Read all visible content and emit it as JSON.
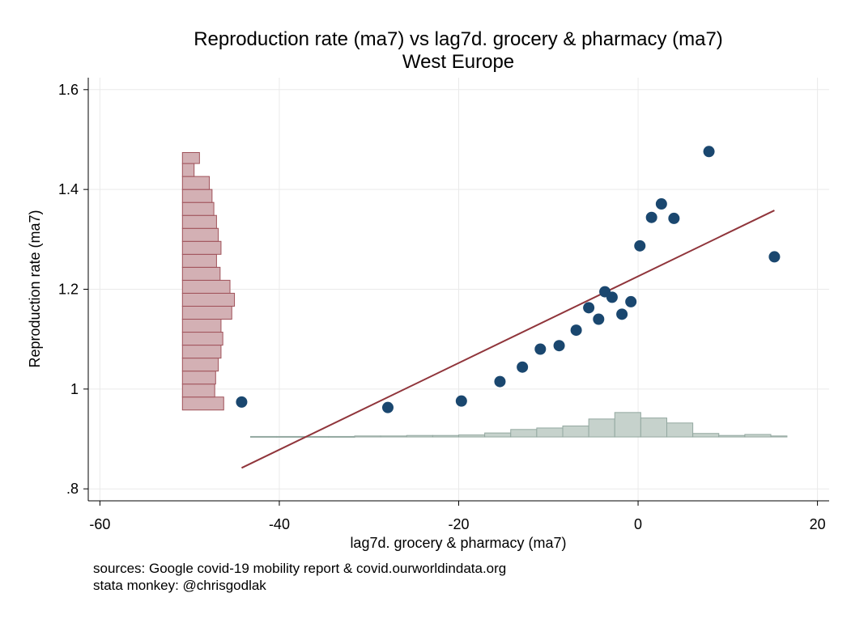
{
  "title_line1": "Reproduction rate (ma7) vs lag7d. grocery & pharmacy (ma7)",
  "title_line2": "West Europe",
  "notes": [
    "sources: Google covid-19 mobility report & covid.ourworldindata.org",
    "stata monkey: @chrisgodlak"
  ],
  "colors": {
    "scatter": "#1a476f",
    "fit_line": "#90353b",
    "y_hist_fill": "#d3b0b4",
    "y_hist_stroke": "#a0525a",
    "x_hist_fill": "#c6d2cc",
    "x_hist_stroke": "#93a8a0",
    "grid": "#eaeaea"
  },
  "chart_data": {
    "type": "scatter",
    "title": "Reproduction rate (ma7) vs lag7d. grocery & pharmacy (ma7)",
    "subtitle": "West Europe",
    "xlabel": "lag7d. grocery & pharmacy (ma7)",
    "ylabel": "Reproduction rate (ma7)",
    "xlim": [
      -61.3,
      21.3
    ],
    "ylim": [
      0.776,
      1.624
    ],
    "xticks": [
      -60,
      -40,
      -20,
      0,
      20
    ],
    "xtick_labels": [
      "-60",
      "-40",
      "-20",
      "0",
      "20"
    ],
    "yticks": [
      0.8,
      1.0,
      1.2,
      1.4,
      1.6
    ],
    "ytick_labels": [
      ".8",
      "1",
      "1.2",
      "1.4",
      "1.6"
    ],
    "grid": true,
    "points": [
      {
        "x": -44.2,
        "y": 0.974
      },
      {
        "x": -27.9,
        "y": 0.963
      },
      {
        "x": -19.7,
        "y": 0.976
      },
      {
        "x": -15.4,
        "y": 1.015
      },
      {
        "x": -12.9,
        "y": 1.044
      },
      {
        "x": -10.9,
        "y": 1.08
      },
      {
        "x": -8.8,
        "y": 1.087
      },
      {
        "x": -6.9,
        "y": 1.118
      },
      {
        "x": -5.5,
        "y": 1.163
      },
      {
        "x": -4.4,
        "y": 1.14
      },
      {
        "x": -3.7,
        "y": 1.195
      },
      {
        "x": -2.9,
        "y": 1.184
      },
      {
        "x": -1.8,
        "y": 1.15
      },
      {
        "x": -0.8,
        "y": 1.175
      },
      {
        "x": 0.2,
        "y": 1.287
      },
      {
        "x": 1.5,
        "y": 1.344
      },
      {
        "x": 2.6,
        "y": 1.371
      },
      {
        "x": 4.0,
        "y": 1.342
      },
      {
        "x": 7.9,
        "y": 1.476
      },
      {
        "x": 15.2,
        "y": 1.265
      }
    ],
    "fit_line": {
      "x": [
        -44.2,
        15.2
      ],
      "y": [
        0.842,
        1.358
      ]
    },
    "y_histogram": {
      "base_x": -50.8,
      "bins": [
        {
          "y0": 0.958,
          "y1": 0.984,
          "x_end": -46.2
        },
        {
          "y0": 0.984,
          "y1": 1.01,
          "x_end": -47.2
        },
        {
          "y0": 1.01,
          "y1": 1.036,
          "x_end": -47.1
        },
        {
          "y0": 1.036,
          "y1": 1.062,
          "x_end": -46.8
        },
        {
          "y0": 1.062,
          "y1": 1.088,
          "x_end": -46.5
        },
        {
          "y0": 1.088,
          "y1": 1.114,
          "x_end": -46.3
        },
        {
          "y0": 1.114,
          "y1": 1.14,
          "x_end": -46.5
        },
        {
          "y0": 1.14,
          "y1": 1.166,
          "x_end": -45.3
        },
        {
          "y0": 1.166,
          "y1": 1.192,
          "x_end": -45.0
        },
        {
          "y0": 1.192,
          "y1": 1.218,
          "x_end": -45.5
        },
        {
          "y0": 1.218,
          "y1": 1.244,
          "x_end": -46.6
        },
        {
          "y0": 1.244,
          "y1": 1.27,
          "x_end": -47.0
        },
        {
          "y0": 1.27,
          "y1": 1.296,
          "x_end": -46.5
        },
        {
          "y0": 1.296,
          "y1": 1.322,
          "x_end": -46.8
        },
        {
          "y0": 1.322,
          "y1": 1.348,
          "x_end": -47.0
        },
        {
          "y0": 1.348,
          "y1": 1.374,
          "x_end": -47.3
        },
        {
          "y0": 1.374,
          "y1": 1.4,
          "x_end": -47.5
        },
        {
          "y0": 1.4,
          "y1": 1.426,
          "x_end": -47.8
        },
        {
          "y0": 1.426,
          "y1": 1.452,
          "x_end": -49.5
        },
        {
          "y0": 1.452,
          "y1": 1.474,
          "x_end": -48.9
        }
      ]
    },
    "x_histogram": {
      "base_y": 0.904,
      "bins": [
        {
          "x0": -43.2,
          "x1": -40.3,
          "y_top": 0.905
        },
        {
          "x0": -40.3,
          "x1": -37.4,
          "y_top": 0.905
        },
        {
          "x0": -37.4,
          "x1": -34.5,
          "y_top": 0.905
        },
        {
          "x0": -34.5,
          "x1": -31.6,
          "y_top": 0.905
        },
        {
          "x0": -31.6,
          "x1": -28.7,
          "y_top": 0.906
        },
        {
          "x0": -28.7,
          "x1": -25.8,
          "y_top": 0.906
        },
        {
          "x0": -25.8,
          "x1": -22.9,
          "y_top": 0.907
        },
        {
          "x0": -22.9,
          "x1": -20.0,
          "y_top": 0.907
        },
        {
          "x0": -20.0,
          "x1": -17.1,
          "y_top": 0.908
        },
        {
          "x0": -17.1,
          "x1": -14.2,
          "y_top": 0.912
        },
        {
          "x0": -14.2,
          "x1": -11.3,
          "y_top": 0.919
        },
        {
          "x0": -11.3,
          "x1": -8.4,
          "y_top": 0.922
        },
        {
          "x0": -8.4,
          "x1": -5.5,
          "y_top": 0.926
        },
        {
          "x0": -5.5,
          "x1": -2.6,
          "y_top": 0.94
        },
        {
          "x0": -2.6,
          "x1": 0.3,
          "y_top": 0.953
        },
        {
          "x0": 0.3,
          "x1": 3.2,
          "y_top": 0.942
        },
        {
          "x0": 3.2,
          "x1": 6.1,
          "y_top": 0.932
        },
        {
          "x0": 6.1,
          "x1": 9.0,
          "y_top": 0.911
        },
        {
          "x0": 9.0,
          "x1": 11.9,
          "y_top": 0.907
        },
        {
          "x0": 11.9,
          "x1": 14.8,
          "y_top": 0.909
        },
        {
          "x0": 14.8,
          "x1": 16.6,
          "y_top": 0.906
        }
      ]
    }
  }
}
